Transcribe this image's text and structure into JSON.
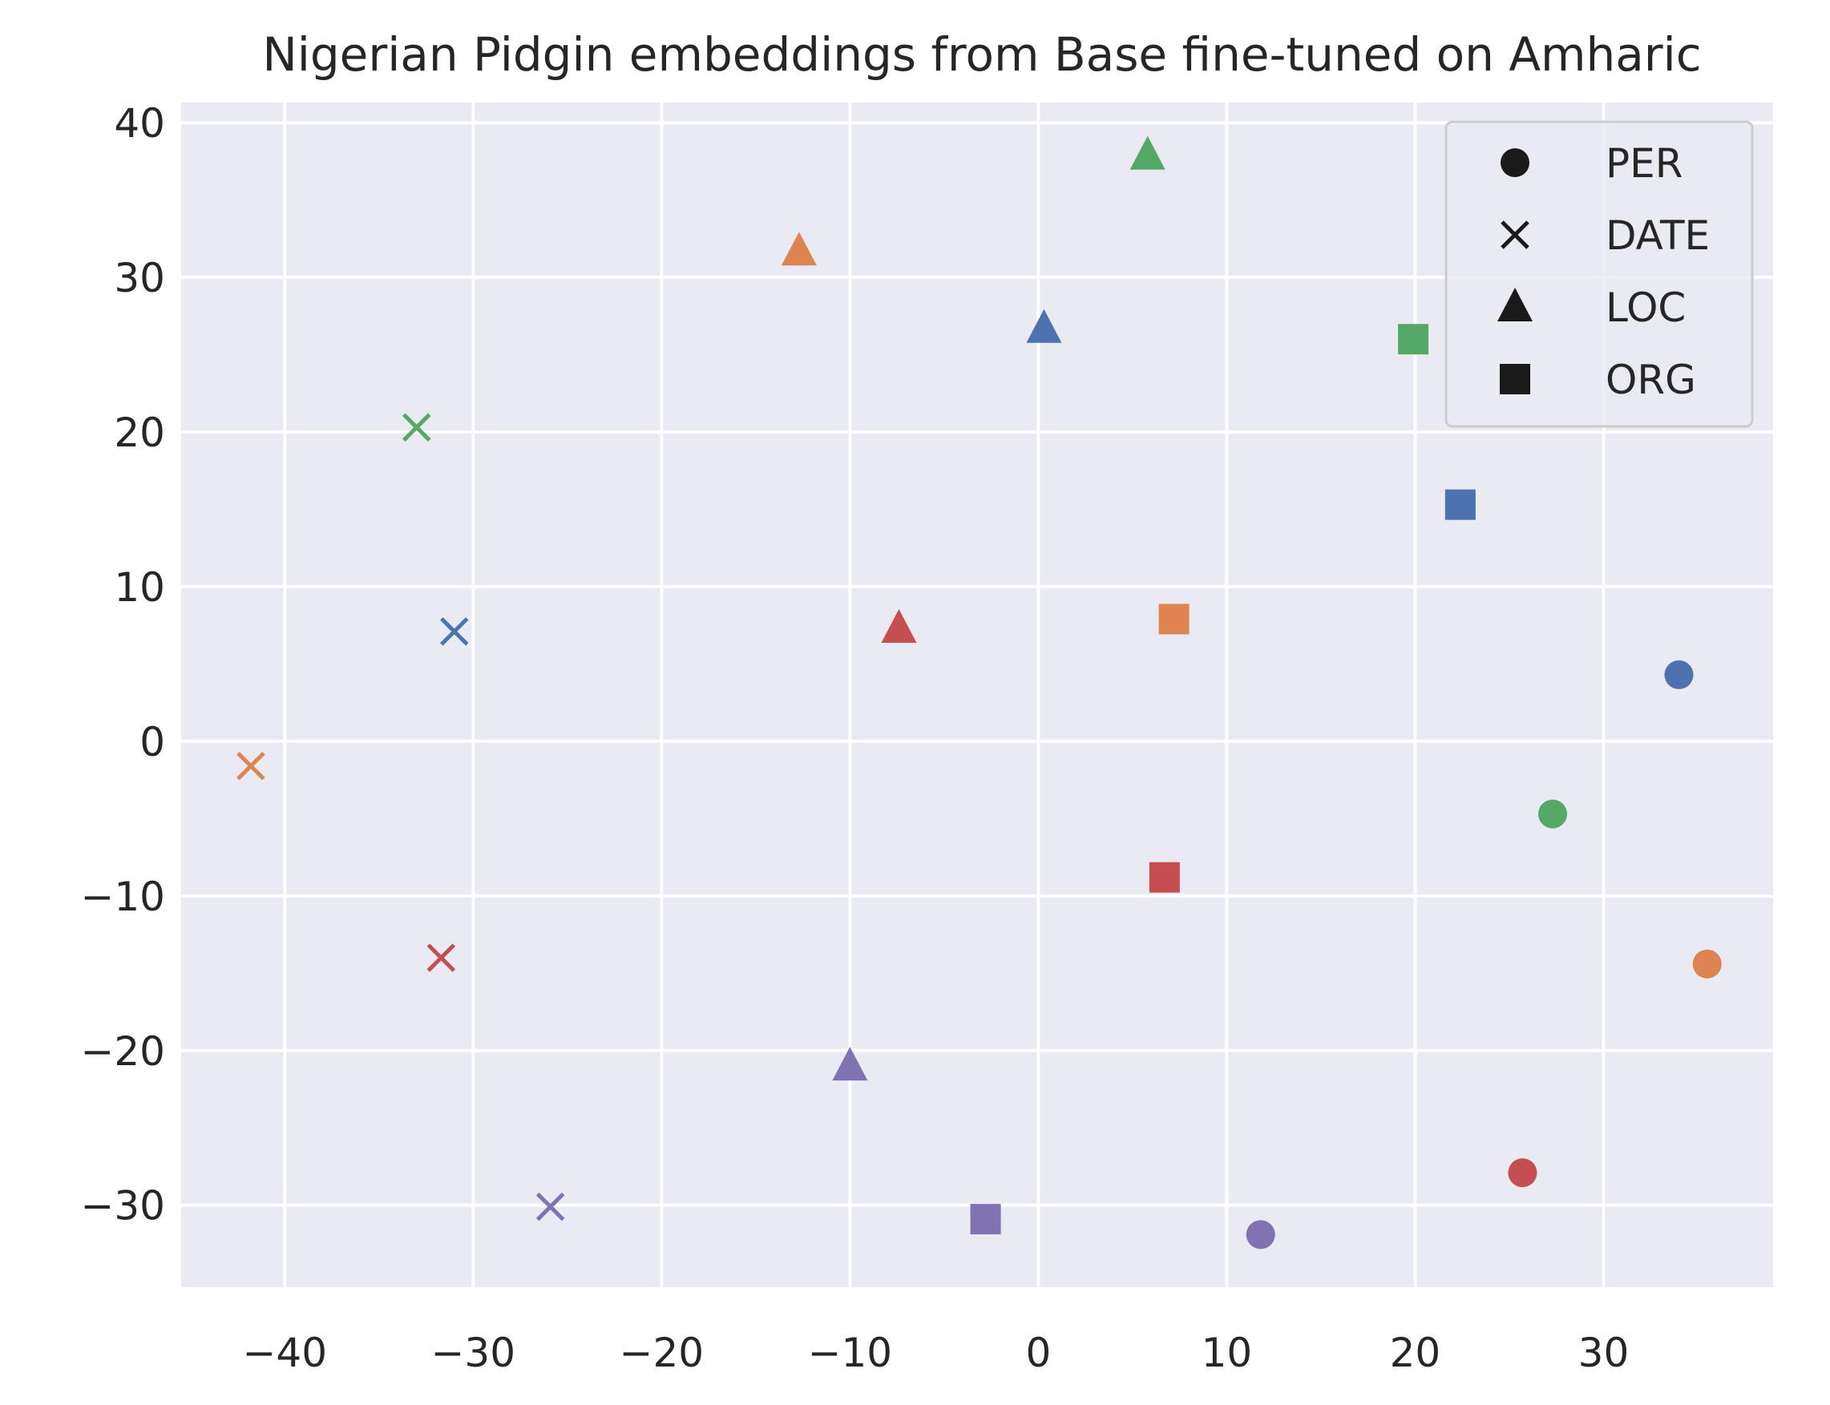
{
  "chart_data": {
    "type": "scatter",
    "title": "Nigerian Pidgin embeddings from Base fine-tuned on Amharic",
    "xlabel": "",
    "ylabel": "",
    "xlim": [
      -45.5,
      39
    ],
    "ylim": [
      -35.3,
      41.3
    ],
    "xticks": [
      -40,
      -30,
      -20,
      -10,
      0,
      10,
      20,
      30
    ],
    "yticks": [
      40,
      30,
      20,
      10,
      0,
      -10,
      -20,
      -30
    ],
    "xtick_labels": [
      "−40",
      "−30",
      "−20",
      "−10",
      "0",
      "10",
      "20",
      "30"
    ],
    "ytick_labels": [
      "40",
      "30",
      "20",
      "10",
      "0",
      "−10",
      "−20",
      "−30"
    ],
    "grid": true,
    "background": "#eaeaf2",
    "legend_position": "top-right",
    "legend": [
      {
        "label": "PER",
        "marker": "circle"
      },
      {
        "label": "DATE",
        "marker": "x"
      },
      {
        "label": "LOC",
        "marker": "triangle"
      },
      {
        "label": "ORG",
        "marker": "square"
      }
    ],
    "colors": {
      "blue": "#4c72b0",
      "orange": "#dd8452",
      "green": "#55a868",
      "red": "#c44e52",
      "purple": "#8172b3"
    },
    "points": [
      {
        "x": 34.0,
        "y": 4.3,
        "marker": "circle",
        "color": "blue"
      },
      {
        "x": 27.3,
        "y": -4.7,
        "marker": "circle",
        "color": "green"
      },
      {
        "x": 35.5,
        "y": -14.4,
        "marker": "circle",
        "color": "orange"
      },
      {
        "x": 25.7,
        "y": -27.9,
        "marker": "circle",
        "color": "red"
      },
      {
        "x": 11.8,
        "y": -31.9,
        "marker": "circle",
        "color": "purple"
      },
      {
        "x": -33.0,
        "y": 20.3,
        "marker": "x",
        "color": "green"
      },
      {
        "x": -31.0,
        "y": 7.1,
        "marker": "x",
        "color": "blue"
      },
      {
        "x": -41.8,
        "y": -1.6,
        "marker": "x",
        "color": "orange"
      },
      {
        "x": -31.7,
        "y": -14.0,
        "marker": "x",
        "color": "red"
      },
      {
        "x": -25.9,
        "y": -30.1,
        "marker": "x",
        "color": "purple"
      },
      {
        "x": 5.8,
        "y": 37.9,
        "marker": "triangle",
        "color": "green"
      },
      {
        "x": -12.7,
        "y": 31.7,
        "marker": "triangle",
        "color": "orange"
      },
      {
        "x": 0.3,
        "y": 26.7,
        "marker": "triangle",
        "color": "blue"
      },
      {
        "x": -7.4,
        "y": 7.3,
        "marker": "triangle",
        "color": "red"
      },
      {
        "x": -10.0,
        "y": -21.0,
        "marker": "triangle",
        "color": "purple"
      },
      {
        "x": 19.9,
        "y": 26.0,
        "marker": "square",
        "color": "green"
      },
      {
        "x": 22.4,
        "y": 15.3,
        "marker": "square",
        "color": "blue"
      },
      {
        "x": 7.2,
        "y": 7.9,
        "marker": "square",
        "color": "orange"
      },
      {
        "x": 6.7,
        "y": -8.8,
        "marker": "square",
        "color": "red"
      },
      {
        "x": -2.8,
        "y": -30.9,
        "marker": "square",
        "color": "purple"
      }
    ]
  }
}
